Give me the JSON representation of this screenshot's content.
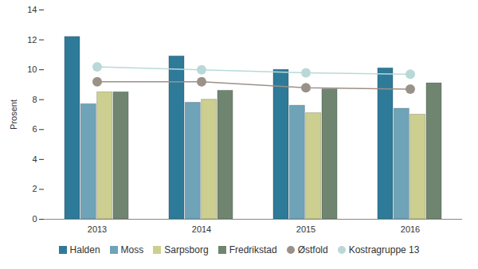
{
  "chart_data": {
    "type": "bar",
    "y_label": "Prosent",
    "categories": [
      "2013",
      "2014",
      "2015",
      "2016"
    ],
    "ylim": [
      0,
      14
    ],
    "yticks": [
      0,
      2,
      4,
      6,
      8,
      10,
      12,
      14
    ],
    "grid": false,
    "legend": "bottom",
    "series": [
      {
        "name": "Halden",
        "type": "bar",
        "color": "#2e7a99",
        "values": [
          12.2,
          10.9,
          10.0,
          10.1
        ]
      },
      {
        "name": "Moss",
        "type": "bar",
        "color": "#6fa3b8",
        "values": [
          7.7,
          7.8,
          7.6,
          7.4
        ]
      },
      {
        "name": "Sarpsborg",
        "type": "bar",
        "color": "#cccf8f",
        "values": [
          8.5,
          8.0,
          7.1,
          7.0
        ]
      },
      {
        "name": "Fredrikstad",
        "type": "bar",
        "color": "#6f8570",
        "values": [
          8.5,
          8.6,
          8.7,
          9.1
        ]
      },
      {
        "name": "Østfold",
        "type": "line",
        "marker": "circle",
        "color": "#9a9189",
        "values": [
          9.2,
          9.2,
          8.8,
          8.7
        ]
      },
      {
        "name": "Kostragruppe 13",
        "type": "line",
        "marker": "circle",
        "color": "#b9d9d9",
        "values": [
          10.2,
          10.0,
          9.8,
          9.7
        ]
      }
    ]
  }
}
